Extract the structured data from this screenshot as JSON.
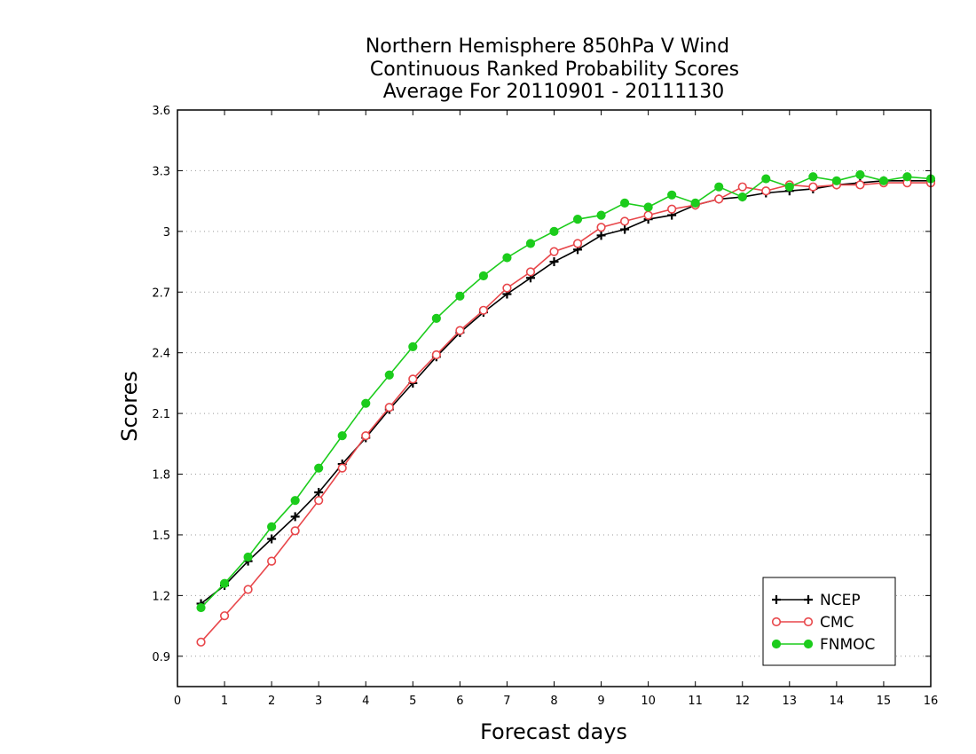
{
  "chart_data": {
    "type": "line",
    "title_lines": [
      "Northern Hemisphere 850hPa V Wind",
      "Continuous Ranked Probability Scores",
      "Average For 20110901 - 20111130"
    ],
    "xlabel": "Forecast days",
    "ylabel": "Scores",
    "xlim": [
      0,
      16
    ],
    "ylim": [
      0.75,
      3.6
    ],
    "xticks": [
      0,
      1,
      2,
      3,
      4,
      5,
      6,
      7,
      8,
      9,
      10,
      11,
      12,
      13,
      14,
      15,
      16
    ],
    "yticks": [
      0.9,
      1.2,
      1.5,
      1.8,
      2.1,
      2.4,
      2.7,
      3,
      3.3,
      3.6
    ],
    "ytick_labels": [
      "0.9",
      "1.2",
      "1.5",
      "1.8",
      "2.1",
      "2.4",
      "2.7",
      "3",
      "3.3",
      "3.6"
    ],
    "grid": "horizontal dotted",
    "legend_position": "bottom-right",
    "x": [
      0.5,
      1,
      1.5,
      2,
      2.5,
      3,
      3.5,
      4,
      4.5,
      5,
      5.5,
      6,
      6.5,
      7,
      7.5,
      8,
      8.5,
      9,
      9.5,
      10,
      10.5,
      11,
      11.5,
      12,
      12.5,
      13,
      13.5,
      14,
      14.5,
      15,
      15.5,
      16
    ],
    "series": [
      {
        "name": "NCEP",
        "color": "#000000",
        "marker": "plus",
        "values": [
          1.16,
          1.25,
          1.37,
          1.48,
          1.59,
          1.71,
          1.85,
          1.98,
          2.12,
          2.25,
          2.38,
          2.5,
          2.6,
          2.69,
          2.77,
          2.85,
          2.91,
          2.98,
          3.01,
          3.06,
          3.08,
          3.13,
          3.16,
          3.17,
          3.19,
          3.2,
          3.21,
          3.23,
          3.24,
          3.25,
          3.25,
          3.25
        ]
      },
      {
        "name": "CMC",
        "color": "#e8474b",
        "marker": "open-circle",
        "values": [
          0.97,
          1.1,
          1.23,
          1.37,
          1.52,
          1.67,
          1.83,
          1.99,
          2.13,
          2.27,
          2.39,
          2.51,
          2.61,
          2.72,
          2.8,
          2.9,
          2.94,
          3.02,
          3.05,
          3.08,
          3.11,
          3.13,
          3.16,
          3.22,
          3.2,
          3.23,
          3.22,
          3.23,
          3.23,
          3.24,
          3.24,
          3.24
        ]
      },
      {
        "name": "FNMOC",
        "color": "#1ccc1c",
        "marker": "filled-circle",
        "values": [
          1.14,
          1.26,
          1.39,
          1.54,
          1.67,
          1.83,
          1.99,
          2.15,
          2.29,
          2.43,
          2.57,
          2.68,
          2.78,
          2.87,
          2.94,
          3.0,
          3.06,
          3.08,
          3.14,
          3.12,
          3.18,
          3.14,
          3.22,
          3.17,
          3.26,
          3.22,
          3.27,
          3.25,
          3.28,
          3.25,
          3.27,
          3.26
        ]
      }
    ]
  }
}
